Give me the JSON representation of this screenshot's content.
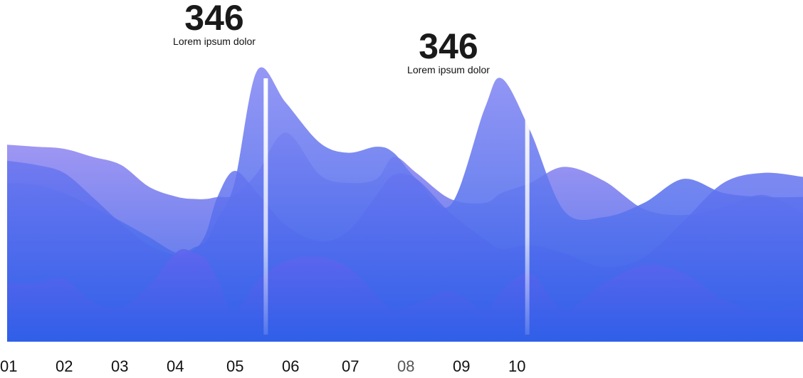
{
  "chart_data": {
    "type": "area",
    "categories": [
      "01",
      "02",
      "03",
      "04",
      "05",
      "06",
      "07",
      "08",
      "09",
      "10"
    ],
    "x": [
      0,
      0.5,
      1,
      1.5,
      2,
      2.5,
      3,
      3.3,
      3.5,
      3.7,
      4,
      4.4,
      4.9,
      5.5,
      6,
      6.5,
      6.8,
      7.2,
      7.8,
      8.4,
      8.7,
      9.2,
      9.8,
      10.5,
      11.2,
      11.9,
      12.6,
      13.3,
      14
    ],
    "series": [
      {
        "fill": "#9b8ef2",
        "opacity": 0.9,
        "values": [
          4.9,
          4.85,
          4.8,
          4.6,
          4.4,
          3.85,
          3.6,
          3.55,
          3.55,
          3.6,
          3.65,
          4.2,
          5.2,
          4.15,
          3.95,
          4.05,
          4.6,
          4.2,
          3.55,
          3.45,
          3.7,
          3.95,
          4.35,
          4.0,
          3.3,
          3.15,
          3.35,
          3.65,
          3.2
        ]
      },
      {
        "fill": "#8a8cf4",
        "opacity": 0.9,
        "values": [
          3.95,
          3.9,
          3.7,
          3.35,
          3.0,
          2.6,
          2.2,
          2.35,
          2.5,
          3.05,
          3.95,
          6.75,
          5.95,
          4.95,
          4.7,
          4.85,
          4.7,
          4.05,
          3.4,
          5.8,
          6.55,
          5.25,
          3.25,
          3.1,
          3.45,
          4.05,
          3.7,
          3.6,
          3.6
        ]
      },
      {
        "fill": "#6b76f0",
        "opacity": 0.85,
        "values": [
          4.5,
          4.4,
          4.2,
          3.6,
          2.95,
          2.4,
          2.15,
          2.3,
          2.7,
          3.6,
          4.25,
          3.7,
          2.9,
          2.5,
          2.75,
          3.65,
          4.15,
          4.05,
          3.2,
          2.55,
          2.3,
          2.4,
          2.2,
          1.85,
          2.1,
          3.0,
          3.95,
          4.2,
          4.1
        ]
      },
      {
        "fill": "#6165ee",
        "opacity": 0.9,
        "values": [
          1.45,
          1.45,
          1.55,
          1.0,
          0.85,
          1.4,
          2.25,
          2.2,
          2.05,
          1.55,
          0.75,
          1.5,
          2.0,
          2.1,
          1.85,
          1.15,
          0.8,
          0.95,
          1.25,
          0.8,
          1.25,
          1.7,
          0.8,
          1.45,
          1.9,
          1.7,
          1.05,
          0.75,
          0.85
        ]
      }
    ],
    "ylim": [
      0,
      8.5
    ],
    "markers": [
      {
        "x": 4.55,
        "value": "346",
        "label": "Lorem ipsum dolor"
      },
      {
        "x": 9.15,
        "value": "346",
        "label": "Lorem ipsum dolor"
      }
    ],
    "gradient_bottom": "#2f5fe8",
    "accent": "#7b6cf2"
  }
}
